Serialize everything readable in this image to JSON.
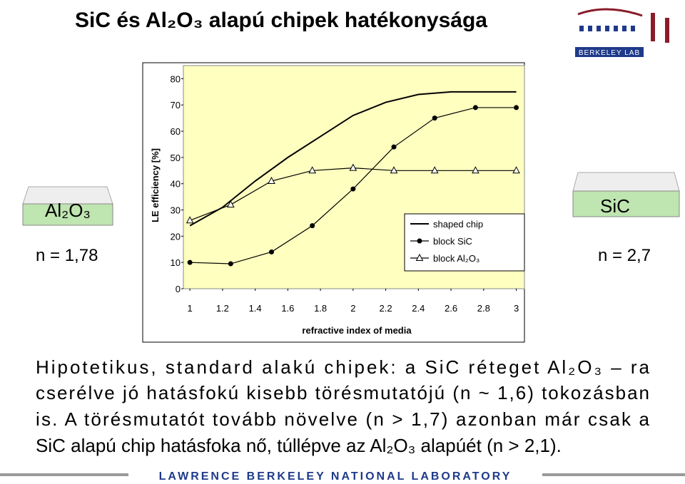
{
  "slide": {
    "title": "SiC és Al₂O₃ alapú chipek hatékonysága",
    "left_material": "Al₂O₃",
    "left_n": "n = 1,78",
    "right_material": "SiC",
    "right_n": "n = 2,7",
    "paragraph": [
      "Hipotetikus, standard alakú chipek: a SiC réteget Al₂O₃ – ra",
      "cserélve jó hatásfokú kisebb törésmutatójú (n ~ 1,6) tokozásban",
      "is. A törésmutatót tovább növelve (n > 1,7) azonban már csak a",
      "SiC alapú chip hatásfoka nő, túllépve az Al₂O₃ alapúét (n > 2,1)."
    ],
    "footer": "LAWRENCE BERKELEY NATIONAL LABORATORY",
    "logo": "BERKELEY LAB"
  },
  "chart_data": {
    "type": "line",
    "x_label": "refractive index of media",
    "y_label": "LE efficiency [%]",
    "xlim": [
      0.96,
      3.05
    ],
    "xticks": [
      1,
      1.2,
      1.4,
      1.6,
      1.8,
      2,
      2.2,
      2.4,
      2.6,
      2.8,
      3
    ],
    "ylim": [
      0,
      85
    ],
    "yticks": [
      0,
      10,
      20,
      30,
      40,
      50,
      60,
      70,
      80
    ],
    "legend": "lower-right",
    "series": [
      {
        "name": "shaped chip",
        "color": "#000000",
        "marker": "none",
        "x": [
          1,
          1.2,
          1.4,
          1.6,
          1.8,
          2,
          2.2,
          2.4,
          2.6,
          2.8,
          3
        ],
        "values": [
          24,
          31,
          41,
          50,
          58,
          66,
          71,
          74,
          75,
          75,
          75
        ]
      },
      {
        "name": "block SiC",
        "color": "#000000",
        "marker": "circle",
        "x": [
          1,
          1.25,
          1.5,
          1.75,
          2,
          2.25,
          2.5,
          2.75,
          3
        ],
        "values": [
          10,
          9.5,
          14,
          24,
          38,
          54,
          65,
          69,
          69
        ]
      },
      {
        "name": "block Al₂O₃",
        "color": "#000000",
        "marker": "triangle",
        "x": [
          1,
          1.25,
          1.5,
          1.75,
          2,
          2.25,
          2.5,
          2.75,
          3
        ],
        "values": [
          26,
          32,
          41,
          45,
          46,
          45,
          45,
          45,
          45
        ]
      }
    ]
  }
}
